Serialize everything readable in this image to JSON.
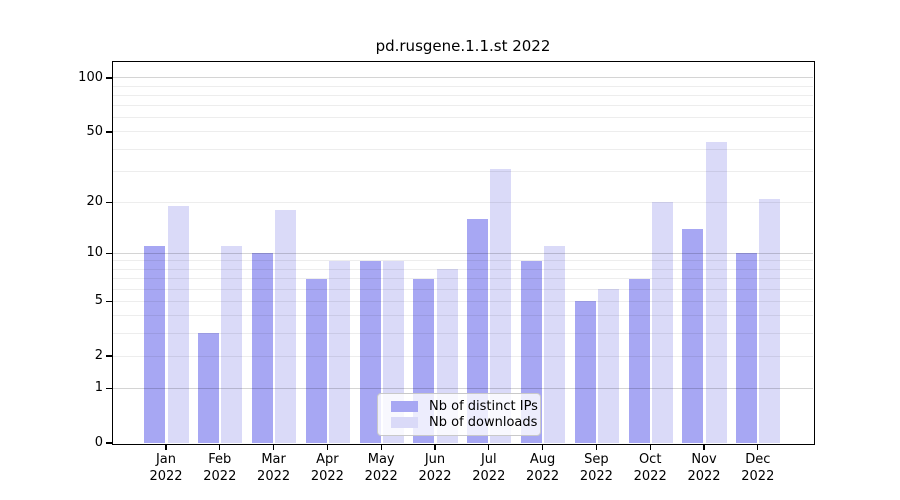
{
  "chart_data": {
    "type": "bar",
    "title": "pd.rusgene.1.1.st 2022",
    "categories": [
      "Jan 2022",
      "Feb 2022",
      "Mar 2022",
      "Apr 2022",
      "May 2022",
      "Jun 2022",
      "Jul 2022",
      "Aug 2022",
      "Sep 2022",
      "Oct 2022",
      "Nov 2022",
      "Dec 2022"
    ],
    "series": [
      {
        "name": "Nb of distinct IPs",
        "color": "#a7a7f3",
        "values": [
          11,
          3,
          10,
          7,
          9,
          7,
          16,
          9,
          5,
          7,
          14,
          10
        ]
      },
      {
        "name": "Nb of downloads",
        "color": "#dadaf8",
        "values": [
          19,
          11,
          18,
          9,
          9,
          8,
          31,
          11,
          6,
          20,
          44,
          21
        ]
      }
    ],
    "xlabel": "",
    "ylabel": "",
    "yscale": "log(1+x)",
    "ylim": [
      0,
      124
    ],
    "y_ticks_labeled": [
      0,
      1,
      2,
      5,
      10,
      20,
      50,
      100
    ],
    "y_grid_major": [
      1,
      10,
      100
    ],
    "y_grid_minor": [
      2,
      3,
      4,
      5,
      6,
      7,
      8,
      9,
      20,
      30,
      40,
      50,
      60,
      70,
      80,
      90
    ],
    "grid": true,
    "legend_position": "lower center"
  },
  "x_axis": {
    "months": [
      "Jan",
      "Feb",
      "Mar",
      "Apr",
      "May",
      "Jun",
      "Jul",
      "Aug",
      "Sep",
      "Oct",
      "Nov",
      "Dec"
    ],
    "year": "2022"
  },
  "legend": {
    "items": [
      {
        "label": "Nb of distinct IPs"
      },
      {
        "label": "Nb of downloads"
      }
    ]
  },
  "colors": {
    "bar_distinct_ips": "#a7a7f3",
    "bar_downloads": "#dadaf8",
    "grid_major": "rgba(0,0,0,0.17)",
    "grid_minor": "rgba(0,0,0,0.07)",
    "spine": "#000000",
    "text": "#000000",
    "legend_border": "#c9c9c9",
    "legend_background": "rgba(255,255,255,0.8)"
  }
}
